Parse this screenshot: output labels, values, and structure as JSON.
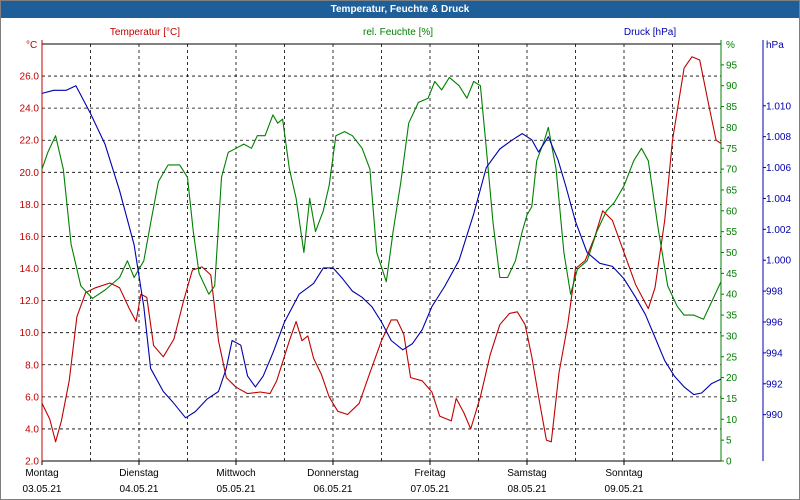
{
  "window": {
    "title": "Temperatur, Feuchte & Druck"
  },
  "colors": {
    "temperature": "#c00000",
    "humidity": "#008000",
    "pressure": "#0000b0",
    "title_bg": "#1f5f99",
    "grid": "#000000"
  },
  "chart_data": {
    "type": "line",
    "title": "Temperatur, Feuchte & Druck",
    "grid": true,
    "axes": {
      "temperature": {
        "label": "Temperatur [°C]",
        "unit": "°C",
        "position": "left",
        "min": 2.0,
        "max": 28.0,
        "ticks": [
          "2.0",
          "4.0",
          "6.0",
          "8.0",
          "10.0",
          "12.0",
          "14.0",
          "16.0",
          "18.0",
          "20.0",
          "22.0",
          "24.0",
          "26.0"
        ]
      },
      "humidity": {
        "label": "rel. Feuchte [%]",
        "unit": "%",
        "position": "right",
        "min": 0,
        "max": 100,
        "ticks": [
          "0",
          "5",
          "10",
          "15",
          "20",
          "25",
          "30",
          "35",
          "40",
          "45",
          "50",
          "55",
          "60",
          "65",
          "70",
          "75",
          "80",
          "85",
          "90",
          "95"
        ]
      },
      "pressure": {
        "label": "Druck [hPa]",
        "unit": "hPa",
        "position": "right-outer",
        "min": 987,
        "max": 1014,
        "ticks": [
          "990",
          "992",
          "994",
          "996",
          "998",
          "1.000",
          "1.002",
          "1.004",
          "1.006",
          "1.008",
          "1.010"
        ],
        "tick_values": [
          990,
          992,
          994,
          996,
          998,
          1000,
          1002,
          1004,
          1006,
          1008,
          1010
        ]
      }
    },
    "x_axis": {
      "min_day": 0,
      "max_day": 7,
      "ticks": [
        {
          "day": "Montag",
          "date": "03.05.21"
        },
        {
          "day": "Dienstag",
          "date": "04.05.21"
        },
        {
          "day": "Mittwoch",
          "date": "05.05.21"
        },
        {
          "day": "Donnerstag",
          "date": "06.05.21"
        },
        {
          "day": "Freitag",
          "date": "07.05.21"
        },
        {
          "day": "Samstag",
          "date": "08.05.21"
        },
        {
          "day": "Sonntag",
          "date": "09.05.21"
        }
      ]
    },
    "series": [
      {
        "name": "Temperatur [°C]",
        "axis": "temperature",
        "color": "#c00000",
        "points": [
          [
            0,
            5.6
          ],
          [
            0.08,
            4.6
          ],
          [
            0.14,
            3.2
          ],
          [
            0.2,
            4.5
          ],
          [
            0.28,
            7.0
          ],
          [
            0.36,
            11.0
          ],
          [
            0.45,
            12.5
          ],
          [
            0.55,
            12.8
          ],
          [
            0.7,
            13.1
          ],
          [
            0.8,
            12.8
          ],
          [
            0.9,
            11.5
          ],
          [
            0.97,
            10.7
          ],
          [
            1.02,
            12.4
          ],
          [
            1.08,
            12.2
          ],
          [
            1.15,
            9.2
          ],
          [
            1.25,
            8.5
          ],
          [
            1.36,
            9.6
          ],
          [
            1.46,
            12.0
          ],
          [
            1.55,
            13.9
          ],
          [
            1.65,
            14.1
          ],
          [
            1.74,
            13.6
          ],
          [
            1.82,
            9.5
          ],
          [
            1.9,
            7.2
          ],
          [
            2.0,
            6.6
          ],
          [
            2.12,
            6.2
          ],
          [
            2.25,
            6.3
          ],
          [
            2.35,
            6.2
          ],
          [
            2.42,
            7.0
          ],
          [
            2.55,
            9.5
          ],
          [
            2.62,
            10.7
          ],
          [
            2.68,
            9.5
          ],
          [
            2.74,
            9.8
          ],
          [
            2.8,
            8.4
          ],
          [
            2.88,
            7.4
          ],
          [
            2.96,
            6.0
          ],
          [
            3.05,
            5.1
          ],
          [
            3.15,
            4.9
          ],
          [
            3.27,
            5.6
          ],
          [
            3.38,
            7.5
          ],
          [
            3.5,
            9.5
          ],
          [
            3.6,
            10.8
          ],
          [
            3.66,
            10.8
          ],
          [
            3.73,
            9.9
          ],
          [
            3.8,
            7.2
          ],
          [
            3.92,
            7.0
          ],
          [
            4.02,
            6.3
          ],
          [
            4.1,
            4.8
          ],
          [
            4.22,
            4.5
          ],
          [
            4.27,
            5.9
          ],
          [
            4.35,
            5.0
          ],
          [
            4.42,
            4.0
          ],
          [
            4.52,
            6.0
          ],
          [
            4.62,
            8.6
          ],
          [
            4.72,
            10.5
          ],
          [
            4.82,
            11.2
          ],
          [
            4.9,
            11.3
          ],
          [
            4.98,
            10.5
          ],
          [
            5.05,
            8.5
          ],
          [
            5.12,
            6.0
          ],
          [
            5.2,
            3.3
          ],
          [
            5.25,
            3.2
          ],
          [
            5.33,
            7.5
          ],
          [
            5.42,
            10.5
          ],
          [
            5.5,
            14.0
          ],
          [
            5.6,
            14.5
          ],
          [
            5.7,
            16.0
          ],
          [
            5.78,
            17.6
          ],
          [
            5.88,
            17.0
          ],
          [
            6.0,
            15.0
          ],
          [
            6.12,
            13.0
          ],
          [
            6.25,
            11.5
          ],
          [
            6.32,
            12.8
          ],
          [
            6.42,
            17.0
          ],
          [
            6.5,
            22.0
          ],
          [
            6.62,
            26.5
          ],
          [
            6.7,
            27.2
          ],
          [
            6.78,
            27.0
          ],
          [
            6.88,
            24.0
          ],
          [
            6.95,
            22.0
          ],
          [
            7.0,
            21.8
          ]
        ]
      },
      {
        "name": "rel. Feuchte [%]",
        "axis": "humidity",
        "color": "#008000",
        "points": [
          [
            0,
            70
          ],
          [
            0.06,
            74
          ],
          [
            0.14,
            78
          ],
          [
            0.22,
            70
          ],
          [
            0.3,
            52
          ],
          [
            0.4,
            42
          ],
          [
            0.52,
            39
          ],
          [
            0.65,
            41
          ],
          [
            0.8,
            44
          ],
          [
            0.88,
            48
          ],
          [
            0.95,
            44
          ],
          [
            1.05,
            48
          ],
          [
            1.12,
            57
          ],
          [
            1.2,
            67
          ],
          [
            1.3,
            71
          ],
          [
            1.42,
            71
          ],
          [
            1.5,
            68
          ],
          [
            1.56,
            55
          ],
          [
            1.62,
            45
          ],
          [
            1.72,
            40
          ],
          [
            1.78,
            42
          ],
          [
            1.85,
            68
          ],
          [
            1.92,
            74
          ],
          [
            2.0,
            75
          ],
          [
            2.08,
            76
          ],
          [
            2.16,
            75
          ],
          [
            2.22,
            78
          ],
          [
            2.3,
            78
          ],
          [
            2.38,
            83
          ],
          [
            2.43,
            81
          ],
          [
            2.48,
            82
          ],
          [
            2.55,
            70
          ],
          [
            2.62,
            63
          ],
          [
            2.7,
            50
          ],
          [
            2.76,
            63
          ],
          [
            2.82,
            55
          ],
          [
            2.9,
            60
          ],
          [
            2.96,
            66
          ],
          [
            3.03,
            78
          ],
          [
            3.12,
            79
          ],
          [
            3.2,
            78
          ],
          [
            3.3,
            75
          ],
          [
            3.38,
            70
          ],
          [
            3.45,
            50
          ],
          [
            3.55,
            43
          ],
          [
            3.62,
            55
          ],
          [
            3.7,
            67
          ],
          [
            3.78,
            81
          ],
          [
            3.88,
            86
          ],
          [
            3.98,
            87
          ],
          [
            4.05,
            91
          ],
          [
            4.12,
            89
          ],
          [
            4.2,
            92
          ],
          [
            4.3,
            90
          ],
          [
            4.38,
            87
          ],
          [
            4.45,
            91
          ],
          [
            4.52,
            90
          ],
          [
            4.58,
            75
          ],
          [
            4.65,
            57
          ],
          [
            4.72,
            44
          ],
          [
            4.8,
            44
          ],
          [
            4.88,
            48
          ],
          [
            4.95,
            55
          ],
          [
            5.0,
            59
          ],
          [
            5.05,
            61
          ],
          [
            5.1,
            72
          ],
          [
            5.18,
            77
          ],
          [
            5.22,
            80
          ],
          [
            5.3,
            70
          ],
          [
            5.38,
            50
          ],
          [
            5.45,
            40
          ],
          [
            5.52,
            46
          ],
          [
            5.62,
            48
          ],
          [
            5.72,
            55
          ],
          [
            5.82,
            60
          ],
          [
            5.9,
            62
          ],
          [
            6.0,
            66
          ],
          [
            6.1,
            72
          ],
          [
            6.18,
            75
          ],
          [
            6.25,
            72
          ],
          [
            6.35,
            56
          ],
          [
            6.45,
            42
          ],
          [
            6.55,
            37
          ],
          [
            6.62,
            35
          ],
          [
            6.72,
            35
          ],
          [
            6.82,
            34
          ],
          [
            6.9,
            38
          ],
          [
            7.0,
            43
          ]
        ]
      },
      {
        "name": "Druck [hPa]",
        "axis": "pressure",
        "color": "#0000b0",
        "points": [
          [
            0,
            1010.8
          ],
          [
            0.12,
            1011.0
          ],
          [
            0.25,
            1011.0
          ],
          [
            0.35,
            1011.3
          ],
          [
            0.5,
            1009.5
          ],
          [
            0.65,
            1007.5
          ],
          [
            0.8,
            1004.5
          ],
          [
            0.95,
            1001.0
          ],
          [
            1.05,
            997.0
          ],
          [
            1.12,
            993.0
          ],
          [
            1.25,
            991.5
          ],
          [
            1.35,
            990.8
          ],
          [
            1.48,
            989.8
          ],
          [
            1.58,
            990.2
          ],
          [
            1.7,
            991.0
          ],
          [
            1.82,
            991.5
          ],
          [
            1.9,
            993.0
          ],
          [
            1.96,
            994.8
          ],
          [
            2.05,
            994.5
          ],
          [
            2.12,
            992.5
          ],
          [
            2.2,
            991.8
          ],
          [
            2.28,
            992.5
          ],
          [
            2.38,
            994.0
          ],
          [
            2.5,
            996.0
          ],
          [
            2.65,
            997.8
          ],
          [
            2.8,
            998.5
          ],
          [
            2.9,
            999.5
          ],
          [
            3.0,
            999.5
          ],
          [
            3.1,
            998.8
          ],
          [
            3.2,
            998.0
          ],
          [
            3.3,
            997.6
          ],
          [
            3.4,
            997.0
          ],
          [
            3.5,
            996.0
          ],
          [
            3.6,
            994.8
          ],
          [
            3.72,
            994.2
          ],
          [
            3.82,
            994.6
          ],
          [
            3.92,
            995.5
          ],
          [
            4.02,
            997.0
          ],
          [
            4.15,
            998.3
          ],
          [
            4.3,
            1000.0
          ],
          [
            4.45,
            1003.0
          ],
          [
            4.58,
            1006.0
          ],
          [
            4.72,
            1007.2
          ],
          [
            4.85,
            1007.8
          ],
          [
            4.95,
            1008.2
          ],
          [
            5.05,
            1007.8
          ],
          [
            5.12,
            1007.0
          ],
          [
            5.22,
            1008.0
          ],
          [
            5.32,
            1006.5
          ],
          [
            5.4,
            1004.8
          ],
          [
            5.5,
            1002.5
          ],
          [
            5.62,
            1000.5
          ],
          [
            5.75,
            999.8
          ],
          [
            5.88,
            999.6
          ],
          [
            6.0,
            998.8
          ],
          [
            6.12,
            997.6
          ],
          [
            6.22,
            996.5
          ],
          [
            6.32,
            995.0
          ],
          [
            6.42,
            993.5
          ],
          [
            6.52,
            992.5
          ],
          [
            6.62,
            991.8
          ],
          [
            6.72,
            991.3
          ],
          [
            6.8,
            991.4
          ],
          [
            6.9,
            992.0
          ],
          [
            7.0,
            992.3
          ]
        ]
      }
    ]
  }
}
